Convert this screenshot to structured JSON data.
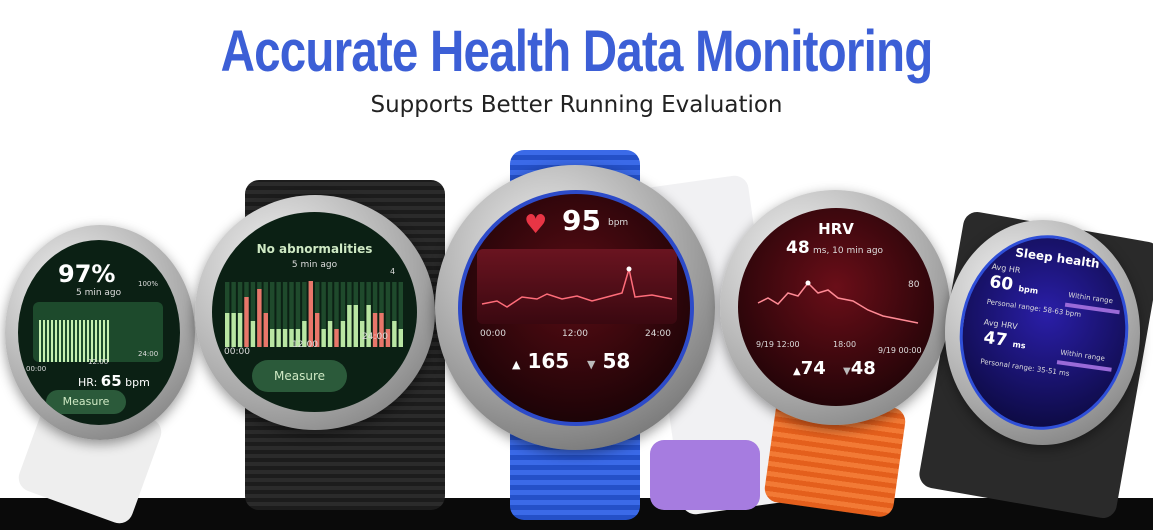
{
  "headline": "Accurate Health Data Monitoring",
  "subheadline": "Supports Better Running Evaluation",
  "watches": [
    {
      "screen": "spo2",
      "value": "97%",
      "time": "5 min ago",
      "max": "100%",
      "x_labels": [
        "00:00",
        "12:00",
        "24:00"
      ],
      "hr_label": "HR:",
      "hr_value": "65",
      "hr_unit": "bpm",
      "button": "Measure",
      "accent": "#e8572a"
    },
    {
      "screen": "ecg",
      "title": "No abnormalities",
      "time": "5 min ago",
      "max": "4",
      "x_labels": [
        "00:00",
        "12:00",
        "24:00"
      ],
      "button": "Measure",
      "bars": [
        3,
        3,
        3,
        5,
        2,
        6,
        3,
        1,
        1,
        1,
        1,
        1,
        2,
        7,
        3,
        1,
        2,
        1,
        2,
        4,
        4,
        2,
        4,
        3,
        3,
        1,
        2,
        1
      ],
      "bar_states": [
        "n",
        "n",
        "n",
        "a",
        "n",
        "a",
        "a",
        "n",
        "n",
        "n",
        "n",
        "n",
        "n",
        "a",
        "a",
        "n",
        "n",
        "a",
        "n",
        "n",
        "n",
        "n",
        "n",
        "a",
        "a",
        "a",
        "n",
        "n"
      ],
      "colors": {
        "normal": "#b9e6a3",
        "abnormal": "#e8766a"
      }
    },
    {
      "screen": "heart-rate",
      "value": "95",
      "unit": "bpm",
      "max": "200",
      "x_labels": [
        "00:00",
        "12:00",
        "24:00"
      ],
      "high": "165",
      "low": "58",
      "strap_color": "#2f5fd8"
    },
    {
      "screen": "hrv",
      "title": "HRV",
      "value": "48",
      "detail": "ms, 10 min ago",
      "max": "80",
      "x_labels": [
        "9/19 12:00",
        "18:00",
        "9/19 00:00"
      ],
      "high": "74",
      "low": "48",
      "strap_color": "#e8651f"
    },
    {
      "screen": "sleep",
      "title": "Sleep health",
      "avg_hr_label": "Avg HR",
      "avg_hr": "60",
      "avg_hr_unit": "bpm",
      "avg_hr_status": "Within range",
      "avg_hr_range": "Personal range: 58-63 bpm",
      "avg_hrv_label": "Avg HRV",
      "avg_hrv": "47",
      "avg_hrv_unit": "ms",
      "avg_hrv_status": "Within range",
      "avg_hrv_range": "Personal range: 35-51 ms"
    }
  ]
}
